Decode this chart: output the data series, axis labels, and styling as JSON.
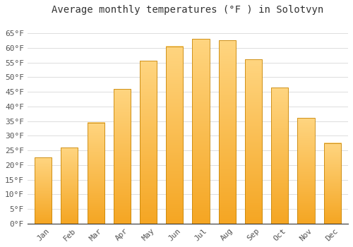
{
  "title": "Average monthly temperatures (°F ) in Solotvyn",
  "months": [
    "Jan",
    "Feb",
    "Mar",
    "Apr",
    "May",
    "Jun",
    "Jul",
    "Aug",
    "Sep",
    "Oct",
    "Nov",
    "Dec"
  ],
  "values": [
    22.5,
    26,
    34.5,
    46,
    55.5,
    60.5,
    63,
    62.5,
    56,
    46.5,
    36,
    27.5
  ],
  "bar_color_bottom": "#F5A623",
  "bar_color_top": "#FFD580",
  "bar_edge_color": "#C8870A",
  "background_color": "#FFFFFF",
  "plot_bg_color": "#FFFFFF",
  "grid_color": "#DDDDDD",
  "ylim": [
    0,
    70
  ],
  "yticks": [
    0,
    5,
    10,
    15,
    20,
    25,
    30,
    35,
    40,
    45,
    50,
    55,
    60,
    65
  ],
  "ytick_labels": [
    "0°F",
    "5°F",
    "10°F",
    "15°F",
    "20°F",
    "25°F",
    "30°F",
    "35°F",
    "40°F",
    "45°F",
    "50°F",
    "55°F",
    "60°F",
    "65°F"
  ],
  "title_fontsize": 10,
  "tick_fontsize": 8,
  "font_family": "monospace",
  "tick_color": "#555555"
}
